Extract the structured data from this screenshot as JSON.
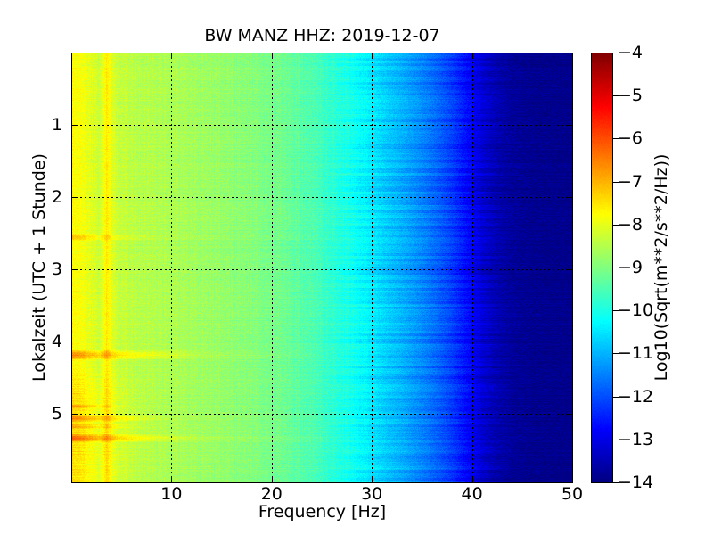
{
  "chart_data": {
    "type": "heatmap",
    "subtype": "seismic-spectrogram",
    "title": "BW MANZ HHZ: 2019-12-07",
    "xlabel": "Frequency [Hz]",
    "ylabel": "Lokalzeit (UTC + 1 Stunde)",
    "colorbar_label": "Log10(Sqrt(m**2/s**2/Hz))",
    "colormap": "jet",
    "frame_color": "#000000",
    "grid": {
      "linestyle": "dotted",
      "color": "#000000"
    },
    "x_range_hz": [
      0,
      50
    ],
    "y_range_hours": [
      0,
      5.95
    ],
    "value_range": [
      -14,
      -4
    ],
    "x_ticks": [
      {
        "value": 10,
        "label": "10"
      },
      {
        "value": 20,
        "label": "20"
      },
      {
        "value": 30,
        "label": "30"
      },
      {
        "value": 40,
        "label": "40"
      },
      {
        "value": 50,
        "label": "50"
      }
    ],
    "y_ticks": [
      {
        "value": 1,
        "label": "1"
      },
      {
        "value": 2,
        "label": "2"
      },
      {
        "value": 3,
        "label": "3"
      },
      {
        "value": 4,
        "label": "4"
      },
      {
        "value": 5,
        "label": "5"
      }
    ],
    "colorbar_ticks": [
      {
        "value": -4,
        "label": "−4"
      },
      {
        "value": -5,
        "label": "−5"
      },
      {
        "value": -6,
        "label": "−6"
      },
      {
        "value": -7,
        "label": "−7"
      },
      {
        "value": -8,
        "label": "−8"
      },
      {
        "value": -9,
        "label": "−9"
      },
      {
        "value": -10,
        "label": "−10"
      },
      {
        "value": -11,
        "label": "−11"
      },
      {
        "value": -12,
        "label": "−12"
      },
      {
        "value": -13,
        "label": "−13"
      },
      {
        "value": -14,
        "label": "−14"
      }
    ],
    "background_spectrum": {
      "freq_hz": [
        0,
        1.0,
        1.8,
        2.6,
        3.1,
        3.5,
        4.0,
        4.6,
        6,
        8,
        10,
        13,
        16,
        19,
        21,
        23,
        25,
        27,
        29,
        31,
        33,
        35,
        36.5,
        38,
        39.5,
        41,
        42.5,
        44,
        46,
        50
      ],
      "log10_amp": [
        -7.7,
        -7.8,
        -8.05,
        -8.25,
        -8.05,
        -7.55,
        -8.1,
        -8.3,
        -8.4,
        -8.5,
        -8.55,
        -8.7,
        -8.85,
        -9.0,
        -9.15,
        -9.4,
        -9.65,
        -9.95,
        -10.3,
        -10.7,
        -11.05,
        -11.45,
        -11.8,
        -12.2,
        -12.7,
        -13.2,
        -13.55,
        -13.75,
        -13.85,
        -13.9
      ]
    },
    "narrowband_peaks_hz": [
      0.5,
      3.5
    ],
    "events": [
      {
        "time_h": 2.55,
        "half_dur_h": 0.055,
        "fmax_hz": 9,
        "amp": 0.5,
        "broad_amp": 0.05
      },
      {
        "time_h": 4.18,
        "half_dur_h": 0.075,
        "fmax_hz": 13.5,
        "amp": 0.9,
        "broad_amp": 0.2
      },
      {
        "time_h": 4.89,
        "half_dur_h": 0.035,
        "fmax_hz": 5.5,
        "amp": 0.55,
        "broad_amp": 0.0
      },
      {
        "time_h": 5.06,
        "half_dur_h": 0.05,
        "fmax_hz": 10,
        "amp": 0.7,
        "broad_amp": 0.12
      },
      {
        "time_h": 5.17,
        "half_dur_h": 0.035,
        "fmax_hz": 8,
        "amp": 0.5,
        "broad_amp": 0.0
      },
      {
        "time_h": 5.33,
        "half_dur_h": 0.06,
        "fmax_hz": 13,
        "amp": 0.85,
        "broad_amp": 0.2
      }
    ],
    "morning_noise": {
      "start_hour": 4.25,
      "ramp_hours": 0.5,
      "fmax_hz": 8.5,
      "amp": 0.35
    }
  }
}
